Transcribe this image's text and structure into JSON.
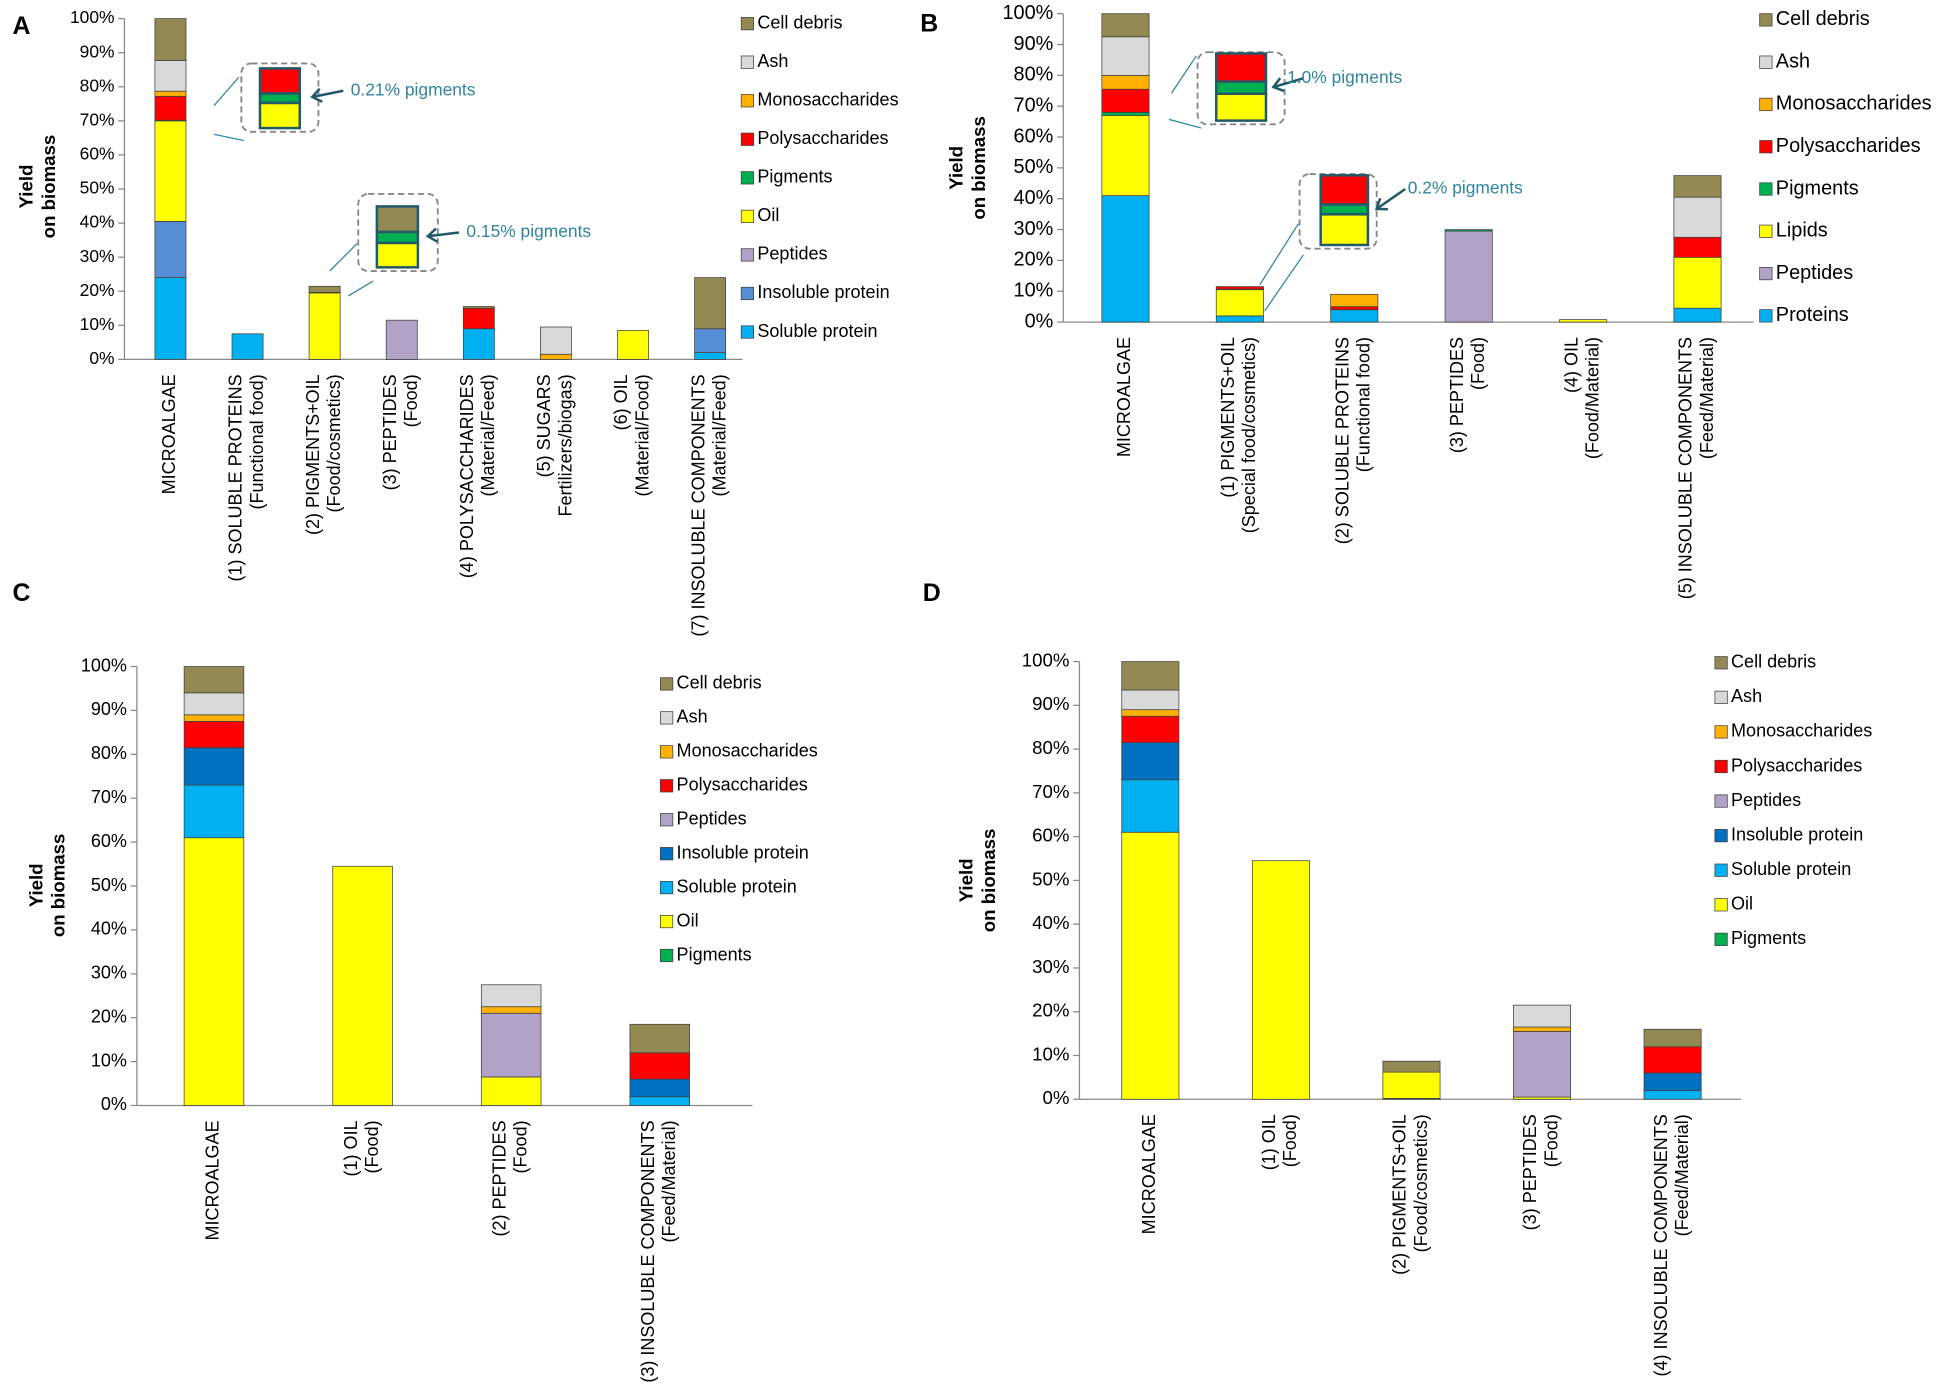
{
  "chart_data": [
    {
      "type": "bar",
      "stacked": true,
      "panel": "A",
      "ylabel": [
        "Yield",
        "on biomass"
      ],
      "categories": [
        [
          "MICROALGAE"
        ],
        [
          "(1) SOLUBLE PROTEINS",
          "(Functional food)"
        ],
        [
          "(2) PIGMENTS+OIL",
          "(Food/cosmetics)"
        ],
        [
          "(3) PEPTIDES",
          "(Food)"
        ],
        [
          "(4) POLYSACCHARIDES",
          "(Material/Feed)"
        ],
        [
          "(5) SUGARS",
          "Fertilizers/biogas)"
        ],
        [
          "(6) OIL",
          "(Material/Food)"
        ],
        [
          "(7) INSOLUBLE COMPONENTS",
          "(Material/Feed)"
        ]
      ],
      "series": [
        {
          "name": "Soluble protein",
          "color": "#00b0f0",
          "values": [
            24,
            7.5,
            0,
            0,
            9,
            0,
            0,
            2
          ]
        },
        {
          "name": "Insoluble protein",
          "color": "#558ed5",
          "values": [
            16.5,
            0,
            0,
            0,
            0,
            0,
            0,
            7
          ]
        },
        {
          "name": "Peptides",
          "color": "#b3a2c7",
          "values": [
            0,
            0,
            0,
            11.5,
            0,
            0,
            0,
            0
          ]
        },
        {
          "name": "Oil",
          "color": "#ffff00",
          "values": [
            29.5,
            0,
            19.5,
            0,
            0,
            0,
            8.5,
            0
          ]
        },
        {
          "name": "Pigments",
          "color": "#00b050",
          "values": [
            0.21,
            0,
            0.15,
            0,
            0,
            0,
            0,
            0
          ]
        },
        {
          "name": "Polysaccharides",
          "color": "#ff0000",
          "values": [
            7,
            0,
            0,
            0,
            6,
            0,
            0,
            0
          ]
        },
        {
          "name": "Monosaccharides",
          "color": "#ffb000",
          "values": [
            1.5,
            0,
            0,
            0,
            0,
            1.5,
            0,
            0
          ]
        },
        {
          "name": "Ash",
          "color": "#d9d9d9",
          "values": [
            9,
            0,
            0,
            0,
            0,
            8,
            0,
            0
          ]
        },
        {
          "name": "Cell debris",
          "color": "#938953",
          "values": [
            12.3,
            0,
            1.8,
            0,
            0.5,
            0,
            0,
            15
          ]
        }
      ],
      "annotations": [
        {
          "text": "0.21% pigments"
        },
        {
          "text": "0.15% pigments"
        }
      ],
      "ylim": [
        0,
        100
      ],
      "yticks": [
        {
          "value": 0,
          "label": "0%"
        },
        {
          "value": 10,
          "label": "10%"
        },
        {
          "value": 20,
          "label": "20%"
        },
        {
          "value": 30,
          "label": "30%"
        },
        {
          "value": 40,
          "label": "40%"
        },
        {
          "value": 50,
          "label": "50%"
        },
        {
          "value": 60,
          "label": "60%"
        },
        {
          "value": 70,
          "label": "70%"
        },
        {
          "value": 80,
          "label": "80%"
        },
        {
          "value": 90,
          "label": "90%"
        },
        {
          "value": 100,
          "label": "100%"
        }
      ],
      "grid": false
    },
    {
      "type": "bar",
      "stacked": true,
      "panel": "B",
      "ylabel": [
        "Yield",
        "on biomass"
      ],
      "categories": [
        [
          "MICROALGAE"
        ],
        [
          "(1) PIGMENTS+OIL",
          "(Special food/cosmetics)"
        ],
        [
          "(2) SOLUBLE PROTEINS",
          "(Functional food)"
        ],
        [
          "(3) PEPTIDES",
          "(Food)"
        ],
        [
          "(4) OIL",
          "(Food/Material)"
        ],
        [
          "(5) INSOLUBLE COMPONENTS",
          "(Feed/Material)"
        ]
      ],
      "series": [
        {
          "name": "Proteins",
          "color": "#00b0f0",
          "values": [
            41,
            2,
            4,
            0,
            0,
            4.5
          ]
        },
        {
          "name": "Peptides",
          "color": "#b3a2c7",
          "values": [
            0,
            0,
            0,
            29.5,
            0,
            0
          ]
        },
        {
          "name": "Lipids",
          "color": "#ffff00",
          "values": [
            26,
            8.5,
            0,
            0,
            0.8,
            16.5
          ]
        },
        {
          "name": "Pigments",
          "color": "#00b050",
          "values": [
            1.0,
            0.2,
            0,
            0.5,
            0,
            0
          ]
        },
        {
          "name": "Polysaccharides",
          "color": "#ff0000",
          "values": [
            7.5,
            0.8,
            1,
            0,
            0,
            6.5
          ]
        },
        {
          "name": "Monosaccharides",
          "color": "#ffb000",
          "values": [
            4.5,
            0,
            4,
            0,
            0,
            0
          ]
        },
        {
          "name": "Ash",
          "color": "#d9d9d9",
          "values": [
            12.5,
            0,
            0,
            0,
            0,
            13
          ]
        },
        {
          "name": "Cell debris",
          "color": "#938953",
          "values": [
            7.5,
            0,
            0,
            0,
            0,
            7
          ]
        }
      ],
      "annotations": [
        {
          "text": "1.0% pigments"
        },
        {
          "text": "0.2% pigments"
        }
      ],
      "ylim": [
        0,
        100
      ],
      "yticks": [
        {
          "value": 0,
          "label": "0%"
        },
        {
          "value": 10,
          "label": "10%"
        },
        {
          "value": 20,
          "label": "20%"
        },
        {
          "value": 30,
          "label": "30%"
        },
        {
          "value": 40,
          "label": "40%"
        },
        {
          "value": 50,
          "label": "50%"
        },
        {
          "value": 60,
          "label": "60%"
        },
        {
          "value": 70,
          "label": "70%"
        },
        {
          "value": 80,
          "label": "80%"
        },
        {
          "value": 90,
          "label": "90%"
        },
        {
          "value": 100,
          "label": "100%"
        }
      ],
      "grid": false
    },
    {
      "type": "bar",
      "stacked": true,
      "panel": "C",
      "ylabel": [
        "Yield",
        "on biomass"
      ],
      "categories": [
        [
          "MICROALGAE"
        ],
        [
          "(1) OIL",
          "(Food)"
        ],
        [
          "(2) PEPTIDES",
          "(Food)"
        ],
        [
          "(3) INSOLUBLE COMPONENTS",
          "(Feed/Material)"
        ]
      ],
      "series": [
        {
          "name": "Pigments",
          "color": "#00b050",
          "values": [
            0,
            0,
            0,
            0
          ]
        },
        {
          "name": "Oil",
          "color": "#ffff00",
          "values": [
            61,
            54.5,
            6.5,
            0
          ]
        },
        {
          "name": "Soluble protein",
          "color": "#00b0f0",
          "values": [
            12,
            0,
            0,
            2
          ]
        },
        {
          "name": "Insoluble protein",
          "color": "#0070c0",
          "values": [
            8.5,
            0,
            0,
            4
          ]
        },
        {
          "name": "Peptides",
          "color": "#b3a2c7",
          "values": [
            0,
            0,
            14.5,
            0
          ]
        },
        {
          "name": "Polysaccharides",
          "color": "#ff0000",
          "values": [
            6,
            0,
            0,
            6
          ]
        },
        {
          "name": "Monosaccharides",
          "color": "#ffb000",
          "values": [
            1.5,
            0,
            1.5,
            0
          ]
        },
        {
          "name": "Ash",
          "color": "#d9d9d9",
          "values": [
            5,
            0,
            5,
            0
          ]
        },
        {
          "name": "Cell debris",
          "color": "#938953",
          "values": [
            6,
            0,
            0,
            6.5
          ]
        }
      ],
      "ylim": [
        0,
        100
      ],
      "yticks": [
        {
          "value": 0,
          "label": "0%"
        },
        {
          "value": 10,
          "label": "10%"
        },
        {
          "value": 20,
          "label": "20%"
        },
        {
          "value": 30,
          "label": "30%"
        },
        {
          "value": 40,
          "label": "40%"
        },
        {
          "value": 50,
          "label": "50%"
        },
        {
          "value": 60,
          "label": "60%"
        },
        {
          "value": 70,
          "label": "70%"
        },
        {
          "value": 80,
          "label": "80%"
        },
        {
          "value": 90,
          "label": "90%"
        },
        {
          "value": 100,
          "label": "100%"
        }
      ],
      "grid": false
    },
    {
      "type": "bar",
      "stacked": true,
      "panel": "D",
      "ylabel": [
        "Yield",
        "on biomass"
      ],
      "categories": [
        [
          "MICROALGAE"
        ],
        [
          "(1) OIL",
          "(Food)"
        ],
        [
          "(2) PIGMENTS+OIL",
          "(Food/cosmetics)"
        ],
        [
          "(3) PEPTIDES",
          "(Food)"
        ],
        [
          "(4) INSOLUBLE COMPONENTS",
          "(Feed/Material)"
        ]
      ],
      "series": [
        {
          "name": "Pigments",
          "color": "#00b050",
          "values": [
            0,
            0,
            0.2,
            0,
            0
          ]
        },
        {
          "name": "Oil",
          "color": "#ffff00",
          "values": [
            61,
            54.5,
            6,
            0.5,
            0
          ]
        },
        {
          "name": "Soluble protein",
          "color": "#00b0f0",
          "values": [
            12,
            0,
            0,
            0,
            2
          ]
        },
        {
          "name": "Insoluble protein",
          "color": "#0070c0",
          "values": [
            8.5,
            0,
            0,
            0,
            4
          ]
        },
        {
          "name": "Peptides",
          "color": "#b3a2c7",
          "values": [
            0,
            0,
            0,
            15,
            0
          ]
        },
        {
          "name": "Polysaccharides",
          "color": "#ff0000",
          "values": [
            6,
            0,
            0,
            0,
            6
          ]
        },
        {
          "name": "Monosaccharides",
          "color": "#ffb000",
          "values": [
            1.5,
            0,
            0,
            1,
            0
          ]
        },
        {
          "name": "Ash",
          "color": "#d9d9d9",
          "values": [
            4.5,
            0,
            0,
            5,
            0
          ]
        },
        {
          "name": "Cell debris",
          "color": "#938953",
          "values": [
            6.5,
            0,
            2.5,
            0,
            4
          ]
        }
      ],
      "ylim": [
        0,
        100
      ],
      "yticks": [
        {
          "value": 0,
          "label": "0%"
        },
        {
          "value": 10,
          "label": "10%"
        },
        {
          "value": 20,
          "label": "20%"
        },
        {
          "value": 30,
          "label": "30%"
        },
        {
          "value": 40,
          "label": "40%"
        },
        {
          "value": 50,
          "label": "50%"
        },
        {
          "value": 60,
          "label": "60%"
        },
        {
          "value": 70,
          "label": "70%"
        },
        {
          "value": 80,
          "label": "80%"
        },
        {
          "value": 90,
          "label": "90%"
        },
        {
          "value": 100,
          "label": "100%"
        }
      ],
      "grid": false
    }
  ]
}
